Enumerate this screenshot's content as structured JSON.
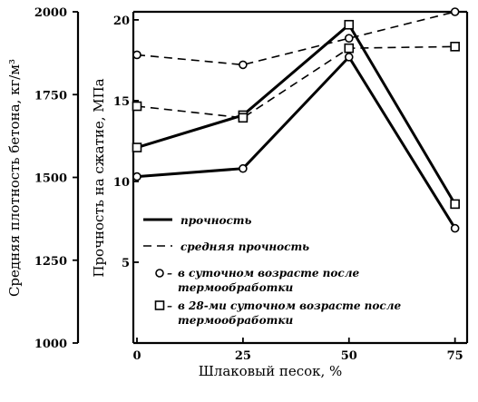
{
  "chart_data": {
    "type": "line",
    "xlabel": "Шлаковый песок, %",
    "ylabel_left": "Средняя плотность бетона, кг/м³",
    "ylabel_right": "Прочность на сжатие, МПа",
    "x_ticks": [
      "0",
      "25",
      "50",
      "75"
    ],
    "x_values": [
      0,
      25,
      50,
      75
    ],
    "xlim": [
      0,
      77
    ],
    "left_axis": {
      "ticks": [
        "2000",
        "1750",
        "1500",
        "1250",
        "1000"
      ],
      "tick_values": [
        2000,
        1750,
        1500,
        1250,
        1000
      ],
      "ylim": [
        1000,
        2000
      ]
    },
    "right_axis": {
      "ticks": [
        "20",
        "15",
        "10",
        "5"
      ],
      "tick_values": [
        20,
        15,
        10,
        5
      ],
      "ylim": [
        0,
        20.5
      ]
    },
    "series": [
      {
        "name": "прочность",
        "marker": "circle",
        "style": "solid",
        "axis": "right",
        "x": [
          0,
          25,
          50,
          75
        ],
        "y": [
          10.3,
          10.8,
          17.7,
          7.1
        ]
      },
      {
        "name": "прочность",
        "marker": "square",
        "style": "solid",
        "axis": "right",
        "x": [
          0,
          25,
          50,
          75
        ],
        "y": [
          12.1,
          14.1,
          19.7,
          8.6
        ]
      },
      {
        "name": "средняя прочность",
        "marker": "circle",
        "style": "dashed",
        "axis": "left",
        "x": [
          0,
          25,
          50,
          75
        ],
        "y": [
          1870,
          1840,
          1920,
          2000
        ]
      },
      {
        "name": "средняя прочность",
        "marker": "square",
        "style": "dashed",
        "axis": "left",
        "x": [
          0,
          25,
          50,
          75
        ],
        "y": [
          1715,
          1680,
          1890,
          1895
        ]
      }
    ],
    "legend": {
      "placement": "inside-lower-left",
      "items": [
        {
          "label": "прочность",
          "symbol": "solid-line"
        },
        {
          "label": "средняя прочность",
          "symbol": "dashed-line"
        },
        {
          "label_lines": [
            "в суточном возрасте после",
            "термообработки"
          ],
          "symbol": "circle"
        },
        {
          "label_lines": [
            "в 28-ми суточном возрасте после",
            "термообработки"
          ],
          "symbol": "square"
        }
      ]
    }
  }
}
